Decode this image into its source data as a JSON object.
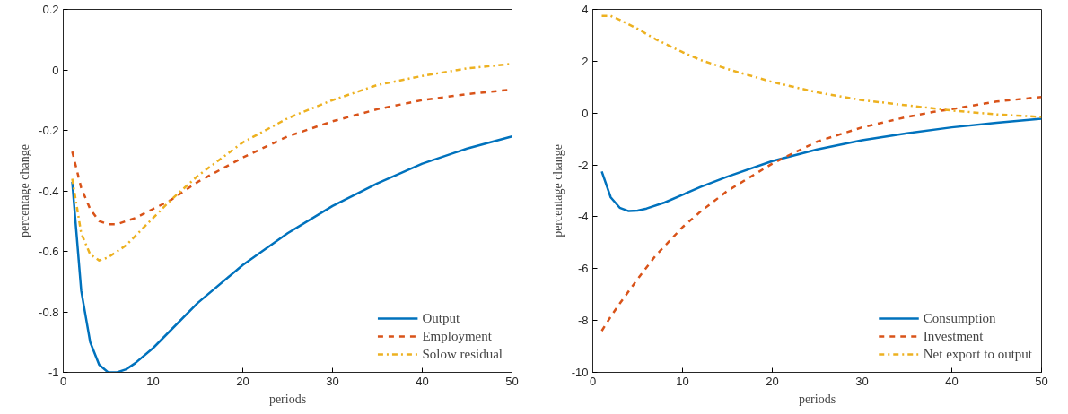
{
  "chart_data": [
    {
      "type": "line",
      "xlabel": "periods",
      "ylabel": "percentage change",
      "xlim": [
        0,
        50
      ],
      "ylim": [
        -1,
        0.2
      ],
      "xticks": [
        0,
        10,
        20,
        30,
        40,
        50
      ],
      "yticks": [
        -1,
        -0.8,
        -0.6,
        -0.4,
        -0.2,
        0,
        0.2
      ],
      "grid": false,
      "legend": "bottom right",
      "series": [
        {
          "name": "Output",
          "color": "#0072bd",
          "line_style": "solid",
          "x": [
            1,
            2,
            3,
            4,
            5,
            6,
            7,
            8,
            10,
            12,
            15,
            20,
            25,
            30,
            35,
            40,
            45,
            50
          ],
          "values": [
            -0.37,
            -0.73,
            -0.9,
            -0.975,
            -1.0,
            -1.0,
            -0.99,
            -0.97,
            -0.92,
            -0.86,
            -0.77,
            -0.645,
            -0.54,
            -0.45,
            -0.375,
            -0.31,
            -0.26,
            -0.22
          ]
        },
        {
          "name": "Employment",
          "color": "#d95319",
          "line_style": "dashed",
          "x": [
            1,
            2,
            3,
            4,
            5,
            6,
            7,
            8,
            10,
            12,
            15,
            20,
            25,
            30,
            35,
            40,
            45,
            50
          ],
          "values": [
            -0.27,
            -0.39,
            -0.46,
            -0.5,
            -0.51,
            -0.51,
            -0.5,
            -0.49,
            -0.46,
            -0.43,
            -0.37,
            -0.29,
            -0.22,
            -0.17,
            -0.13,
            -0.1,
            -0.08,
            -0.065
          ]
        },
        {
          "name": "Solow residual",
          "color": "#edb120",
          "line_style": "dashdot",
          "x": [
            1,
            2,
            3,
            4,
            5,
            6,
            7,
            8,
            10,
            12,
            15,
            20,
            25,
            30,
            35,
            40,
            45,
            50
          ],
          "values": [
            -0.36,
            -0.54,
            -0.61,
            -0.63,
            -0.62,
            -0.6,
            -0.58,
            -0.55,
            -0.49,
            -0.43,
            -0.35,
            -0.24,
            -0.16,
            -0.1,
            -0.05,
            -0.02,
            0.005,
            0.02
          ]
        }
      ]
    },
    {
      "type": "line",
      "xlabel": "periods",
      "ylabel": "percentage change",
      "xlim": [
        0,
        50
      ],
      "ylim": [
        -10,
        4
      ],
      "xticks": [
        0,
        10,
        20,
        30,
        40,
        50
      ],
      "yticks": [
        -10,
        -8,
        -6,
        -4,
        -2,
        0,
        2,
        4
      ],
      "grid": false,
      "legend": "bottom right",
      "series": [
        {
          "name": "Consumption",
          "color": "#0072bd",
          "line_style": "solid",
          "x": [
            1,
            2,
            3,
            4,
            5,
            6,
            8,
            10,
            12,
            15,
            20,
            25,
            30,
            35,
            40,
            45,
            50
          ],
          "values": [
            -2.25,
            -3.25,
            -3.65,
            -3.78,
            -3.76,
            -3.68,
            -3.45,
            -3.15,
            -2.85,
            -2.45,
            -1.85,
            -1.4,
            -1.05,
            -0.78,
            -0.55,
            -0.37,
            -0.22
          ]
        },
        {
          "name": "Investment",
          "color": "#d95319",
          "line_style": "dashed",
          "x": [
            1,
            2,
            3,
            5,
            7,
            10,
            12,
            15,
            20,
            22,
            25,
            30,
            35,
            38,
            40,
            45,
            50
          ],
          "values": [
            -8.4,
            -7.85,
            -7.35,
            -6.4,
            -5.5,
            -4.4,
            -3.8,
            -3.0,
            -1.95,
            -1.6,
            -1.1,
            -0.55,
            -0.15,
            0.05,
            0.15,
            0.45,
            0.62
          ]
        },
        {
          "name": "Net export to output",
          "color": "#edb120",
          "line_style": "dashdot",
          "x": [
            1,
            2,
            3,
            5,
            7,
            10,
            12,
            15,
            20,
            25,
            30,
            35,
            40,
            45,
            50
          ],
          "values": [
            3.75,
            3.75,
            3.6,
            3.25,
            2.85,
            2.35,
            2.05,
            1.7,
            1.2,
            0.8,
            0.5,
            0.3,
            0.1,
            -0.05,
            -0.15
          ]
        }
      ]
    }
  ]
}
